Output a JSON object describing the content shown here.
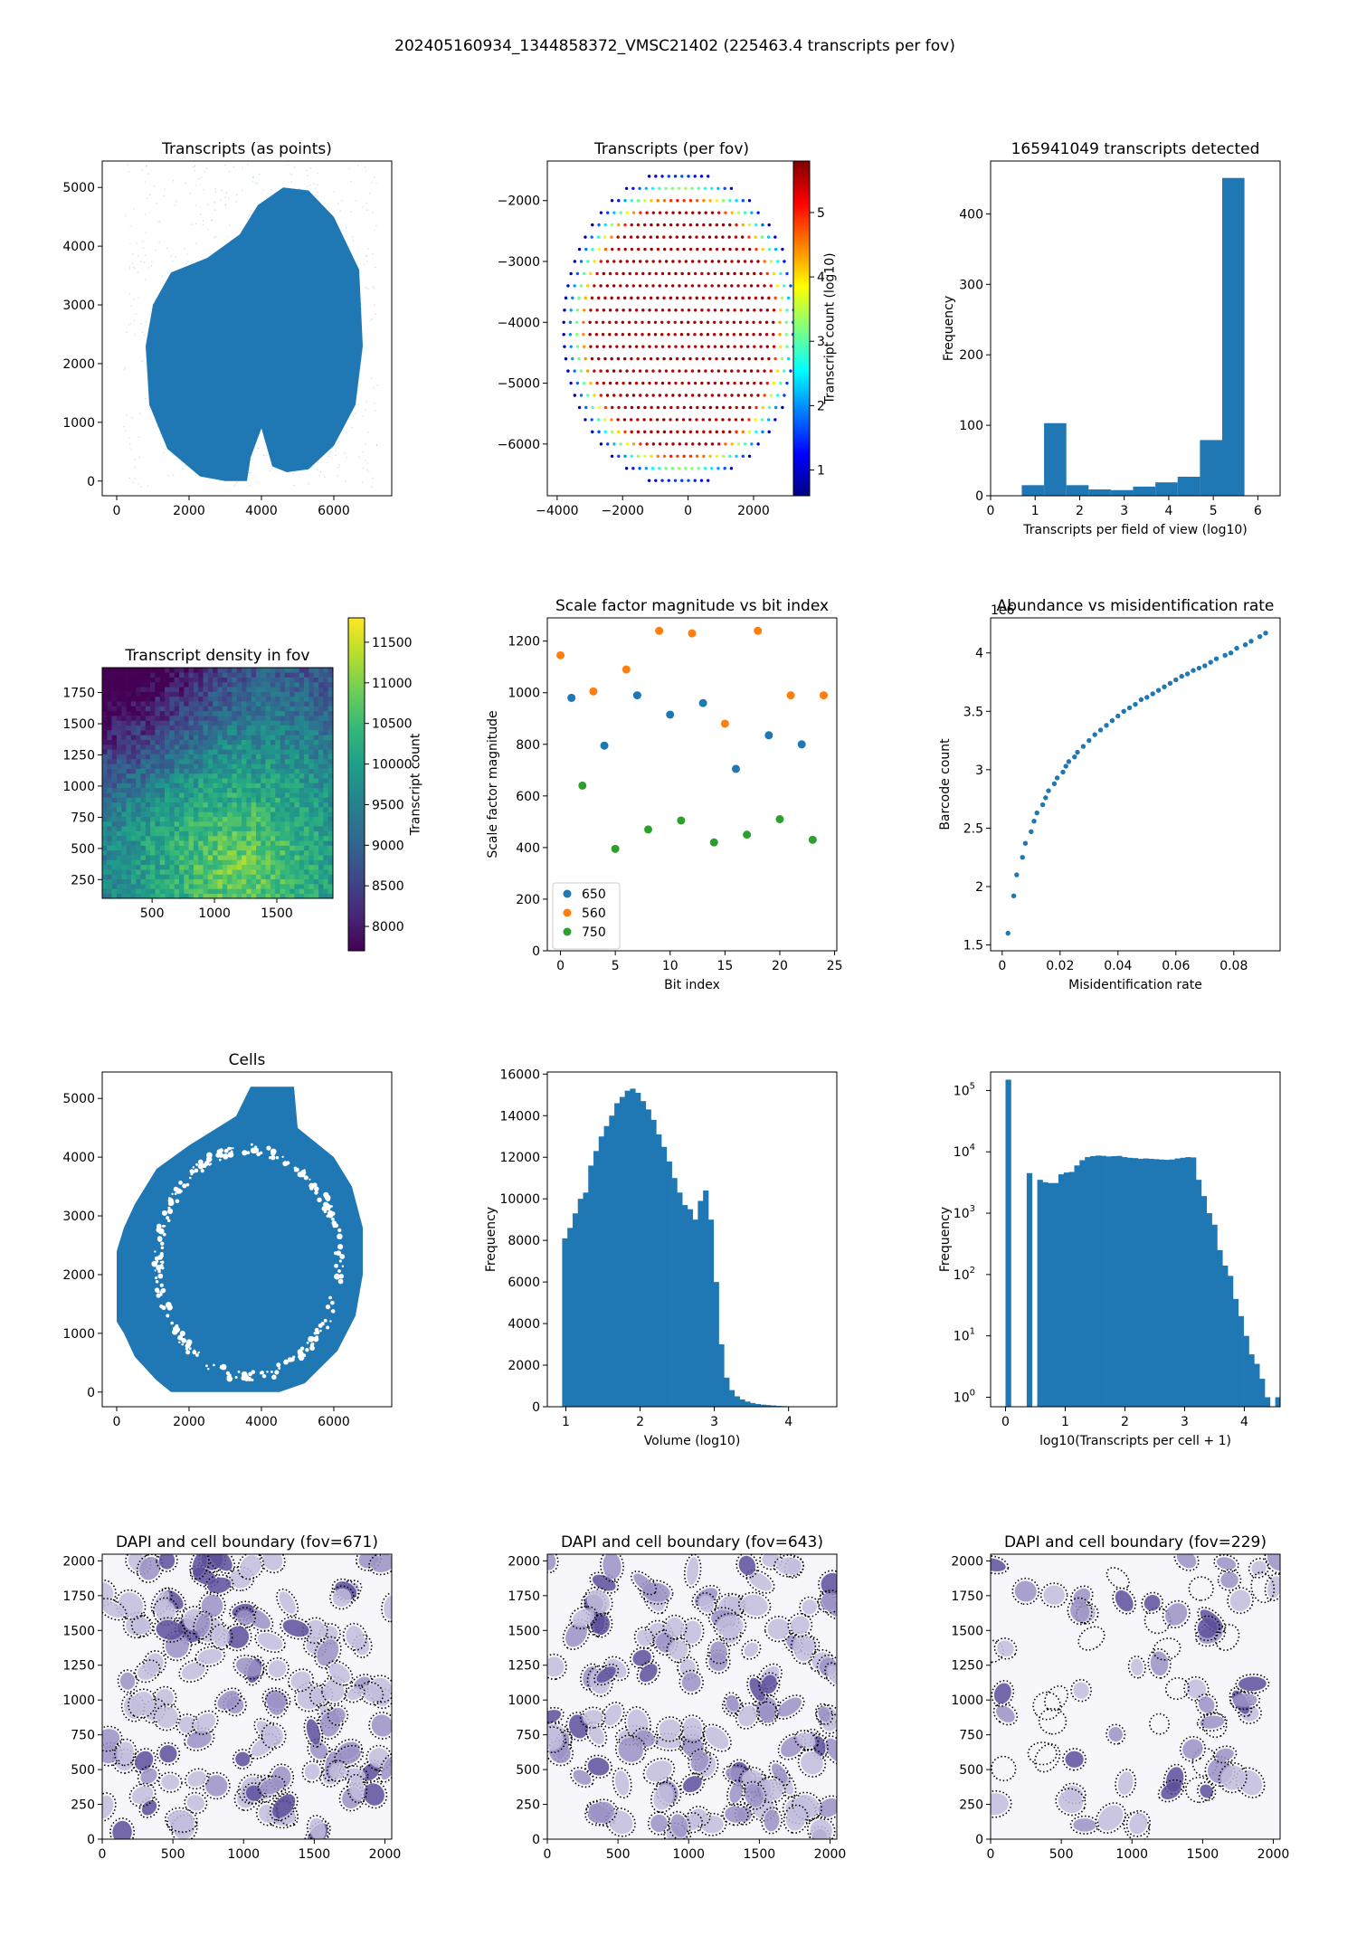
{
  "suptitle": "202405160934_1344858372_VMSC21402 (225463.4 transcripts per fov)",
  "chart_data": [
    {
      "id": "p1",
      "type": "scatter",
      "title": "Transcripts (as points)",
      "xlabel": "",
      "ylabel": "",
      "xlim": [
        -400,
        7600
      ],
      "ylim": [
        -250,
        5450
      ],
      "xticks": [
        0,
        2000,
        4000,
        6000
      ],
      "yticks": [
        0,
        1000,
        2000,
        3000,
        4000,
        5000
      ],
      "color": "#1f77b4",
      "outline": [
        [
          800,
          2300
        ],
        [
          1000,
          3000
        ],
        [
          1500,
          3550
        ],
        [
          2500,
          3800
        ],
        [
          3400,
          4200
        ],
        [
          3900,
          4700
        ],
        [
          4600,
          5000
        ],
        [
          5300,
          4950
        ],
        [
          6000,
          4500
        ],
        [
          6700,
          3600
        ],
        [
          6800,
          2300
        ],
        [
          6600,
          1300
        ],
        [
          6000,
          600
        ],
        [
          5300,
          200
        ],
        [
          4700,
          150
        ],
        [
          4300,
          250
        ],
        [
          4000,
          900
        ],
        [
          3700,
          400
        ],
        [
          3600,
          0
        ],
        [
          3000,
          0
        ],
        [
          2300,
          80
        ],
        [
          1400,
          550
        ],
        [
          900,
          1300
        ]
      ]
    },
    {
      "id": "p2",
      "type": "scatter",
      "title": "Transcripts (per fov)",
      "xlabel": "",
      "ylabel": "",
      "xlim": [
        -4300,
        3300
      ],
      "ylim": [
        -6850,
        -1350
      ],
      "xticks": [
        -4000,
        -2000,
        0,
        2000
      ],
      "yticks": [
        -2000,
        -3000,
        -4000,
        -5000,
        -6000
      ],
      "colorbar_label": "Transcript count (log10)",
      "colorbar_range": [
        0.6,
        5.8
      ],
      "colorbar_ticks": [
        1,
        2,
        3,
        4,
        5
      ],
      "colormap": "jet",
      "grid_points": {
        "y_top": -1600,
        "y_bottom": -6600,
        "y_step": 200,
        "x_step": 200,
        "x_center": 0,
        "x_half_width_max": 3600,
        "x_offset": -200
      }
    },
    {
      "id": "p3",
      "type": "bar",
      "title": "165941049 transcripts detected",
      "xlabel": "Transcripts per field of view (log10)",
      "ylabel": "Frequency",
      "xlim": [
        0,
        6.5
      ],
      "ylim": [
        0,
        475
      ],
      "xticks": [
        0,
        1,
        2,
        3,
        4,
        5,
        6
      ],
      "yticks": [
        0,
        100,
        200,
        300,
        400
      ],
      "bin_edges": [
        0.7,
        1.2,
        1.7,
        2.2,
        2.7,
        3.2,
        3.7,
        4.2,
        4.7,
        5.2,
        5.7
      ],
      "values": [
        15,
        103,
        15,
        9,
        8,
        13,
        19,
        27,
        79,
        451
      ]
    },
    {
      "id": "p4",
      "type": "heatmap",
      "title": "Transcript density in fov",
      "xlabel": "",
      "ylabel": "",
      "xlim": [
        100,
        1950
      ],
      "ylim": [
        100,
        1950
      ],
      "xticks": [
        500,
        1000,
        1500
      ],
      "yticks": [
        250,
        500,
        750,
        1000,
        1250,
        1500,
        1750
      ],
      "colorbar_label": "Transcript count",
      "colorbar_range": [
        7700,
        11800
      ],
      "colorbar_ticks": [
        8000,
        8500,
        9000,
        9500,
        10000,
        10500,
        11000,
        11500
      ],
      "colormap": "viridis",
      "peak": [
        1200,
        350
      ],
      "corner_low": [
        100,
        1950
      ]
    },
    {
      "id": "p5",
      "type": "scatter",
      "title": "Scale factor magnitude vs bit index",
      "xlabel": "Bit index",
      "ylabel": "Scale factor magnitude",
      "xlim": [
        -1.2,
        25.2
      ],
      "ylim": [
        0,
        1290
      ],
      "xticks": [
        0,
        5,
        10,
        15,
        20,
        25
      ],
      "yticks": [
        0,
        200,
        400,
        600,
        800,
        1000,
        1200
      ],
      "legend": "lower left",
      "series": [
        {
          "name": "650",
          "color": "#1f77b4",
          "x": [
            1,
            4,
            7,
            10,
            13,
            16,
            19,
            22
          ],
          "y": [
            980,
            795,
            990,
            915,
            960,
            705,
            835,
            800
          ]
        },
        {
          "name": "560",
          "color": "#ff7f0e",
          "x": [
            0,
            3,
            6,
            9,
            12,
            15,
            18,
            21,
            24
          ],
          "y": [
            1145,
            1005,
            1090,
            1240,
            1230,
            880,
            1240,
            990,
            990
          ]
        },
        {
          "name": "750",
          "color": "#2ca02c",
          "x": [
            2,
            5,
            8,
            11,
            14,
            17,
            20,
            23
          ],
          "y": [
            640,
            395,
            470,
            505,
            420,
            450,
            510,
            430
          ]
        }
      ]
    },
    {
      "id": "p6",
      "type": "scatter",
      "title": "Abundance vs misidentification rate",
      "xlabel": "Misidentification rate",
      "ylabel": "Barcode count",
      "yoffset": "1e6",
      "xlim": [
        -0.004,
        0.096
      ],
      "ylim": [
        1.45,
        4.3
      ],
      "xticks": [
        0.0,
        0.02,
        0.04,
        0.06,
        0.08
      ],
      "yticks": [
        1.5,
        2.0,
        2.5,
        3.0,
        3.5,
        4.0
      ],
      "color": "#1f77b4",
      "x": [
        0.002,
        0.004,
        0.005,
        0.007,
        0.008,
        0.01,
        0.011,
        0.012,
        0.014,
        0.015,
        0.016,
        0.018,
        0.019,
        0.021,
        0.022,
        0.023,
        0.025,
        0.026,
        0.028,
        0.03,
        0.032,
        0.034,
        0.036,
        0.038,
        0.04,
        0.042,
        0.044,
        0.046,
        0.048,
        0.05,
        0.052,
        0.054,
        0.056,
        0.058,
        0.06,
        0.062,
        0.064,
        0.066,
        0.068,
        0.07,
        0.072,
        0.074,
        0.077,
        0.079,
        0.081,
        0.084,
        0.086,
        0.089,
        0.091
      ],
      "y": [
        1.6,
        1.92,
        2.1,
        2.25,
        2.37,
        2.47,
        2.56,
        2.63,
        2.7,
        2.76,
        2.82,
        2.88,
        2.93,
        2.98,
        3.03,
        3.07,
        3.11,
        3.15,
        3.2,
        3.25,
        3.3,
        3.34,
        3.38,
        3.42,
        3.46,
        3.5,
        3.53,
        3.56,
        3.6,
        3.62,
        3.65,
        3.68,
        3.71,
        3.74,
        3.77,
        3.8,
        3.82,
        3.85,
        3.87,
        3.89,
        3.92,
        3.95,
        3.98,
        4.0,
        4.04,
        4.07,
        4.1,
        4.14,
        4.17
      ]
    },
    {
      "id": "p7",
      "type": "scatter",
      "title": "Cells",
      "xlabel": "",
      "ylabel": "",
      "xlim": [
        -400,
        7600
      ],
      "ylim": [
        -250,
        5450
      ],
      "xticks": [
        0,
        2000,
        4000,
        6000
      ],
      "yticks": [
        0,
        1000,
        2000,
        3000,
        4000,
        5000
      ],
      "color": "#1f77b4",
      "outline": [
        [
          0,
          2400
        ],
        [
          0,
          1200
        ],
        [
          200,
          1000
        ],
        [
          500,
          600
        ],
        [
          1100,
          200
        ],
        [
          1500,
          0
        ],
        [
          4500,
          0
        ],
        [
          5200,
          150
        ],
        [
          6100,
          700
        ],
        [
          6600,
          1300
        ],
        [
          6800,
          2000
        ],
        [
          6800,
          2800
        ],
        [
          6500,
          3500
        ],
        [
          6000,
          4000
        ],
        [
          5000,
          4500
        ],
        [
          4900,
          5200
        ],
        [
          3700,
          5200
        ],
        [
          3300,
          4700
        ],
        [
          2000,
          4200
        ],
        [
          1100,
          3800
        ],
        [
          500,
          3200
        ],
        [
          200,
          2800
        ]
      ]
    },
    {
      "id": "p8",
      "type": "bar",
      "title": "",
      "xlabel": "Volume (log10)",
      "ylabel": "Frequency",
      "xlim": [
        0.75,
        4.65
      ],
      "ylim": [
        0,
        16100
      ],
      "xticks": [
        1,
        2,
        3,
        4
      ],
      "yticks": [
        0,
        2000,
        4000,
        6000,
        8000,
        10000,
        12000,
        14000,
        16000
      ],
      "bin_start": 0.95,
      "bin_width": 0.0703,
      "values": [
        8100,
        8600,
        9300,
        10000,
        10300,
        11600,
        12300,
        13000,
        13500,
        14000,
        14600,
        14900,
        15200,
        15300,
        15100,
        14700,
        14300,
        13800,
        13100,
        12500,
        11800,
        11000,
        10300,
        9700,
        9500,
        9000,
        9900,
        10400,
        9000,
        6000,
        3000,
        1400,
        800,
        500,
        350,
        250,
        180,
        130,
        100,
        80,
        60,
        40,
        30,
        20,
        15,
        10,
        8,
        5
      ]
    },
    {
      "id": "p9",
      "type": "bar",
      "title": "",
      "yscale": "log",
      "xlabel": "log10(Transcripts per cell + 1)",
      "ylabel": "Frequency",
      "xlim": [
        -0.25,
        4.6
      ],
      "ylim": [
        0.7,
        200000
      ],
      "xticks": [
        0,
        1,
        2,
        3,
        4
      ],
      "yticks_exp": [
        0,
        1,
        2,
        3,
        4,
        5
      ],
      "bin_start": 0.0,
      "bin_width": 0.0886,
      "values": [
        150000,
        0,
        0,
        0,
        4500,
        0,
        3500,
        3200,
        3100,
        3100,
        4300,
        4600,
        4700,
        6000,
        7300,
        8200,
        8500,
        8700,
        8600,
        8400,
        8500,
        8600,
        8200,
        8000,
        7900,
        7700,
        7800,
        7700,
        7600,
        7500,
        7400,
        7500,
        7800,
        8000,
        8200,
        8100,
        3500,
        1900,
        1000,
        650,
        250,
        140,
        95,
        40,
        21,
        10,
        5,
        3.5,
        2,
        1,
        0,
        1,
        2
      ]
    },
    {
      "id": "p10",
      "type": "image",
      "title": "DAPI and cell boundary (fov=671)",
      "xlim": [
        0,
        2048
      ],
      "ylim": [
        0,
        2048
      ],
      "xticks": [
        0,
        500,
        1000,
        1500,
        2000
      ],
      "yticks": [
        0,
        250,
        500,
        750,
        1000,
        1250,
        1500,
        1750,
        2000
      ],
      "seed": 671
    },
    {
      "id": "p11",
      "type": "image",
      "title": "DAPI and cell boundary (fov=643)",
      "xlim": [
        0,
        2048
      ],
      "ylim": [
        0,
        2048
      ],
      "xticks": [
        0,
        500,
        1000,
        1500,
        2000
      ],
      "yticks": [
        0,
        250,
        500,
        750,
        1000,
        1250,
        1500,
        1750,
        2000
      ],
      "seed": 643
    },
    {
      "id": "p12",
      "type": "image",
      "title": "DAPI and cell boundary (fov=229)",
      "xlim": [
        0,
        2048
      ],
      "ylim": [
        0,
        2048
      ],
      "xticks": [
        0,
        500,
        1000,
        1500,
        2000
      ],
      "yticks": [
        0,
        250,
        500,
        750,
        1000,
        1250,
        1500,
        1750,
        2000
      ],
      "seed": 229
    }
  ]
}
